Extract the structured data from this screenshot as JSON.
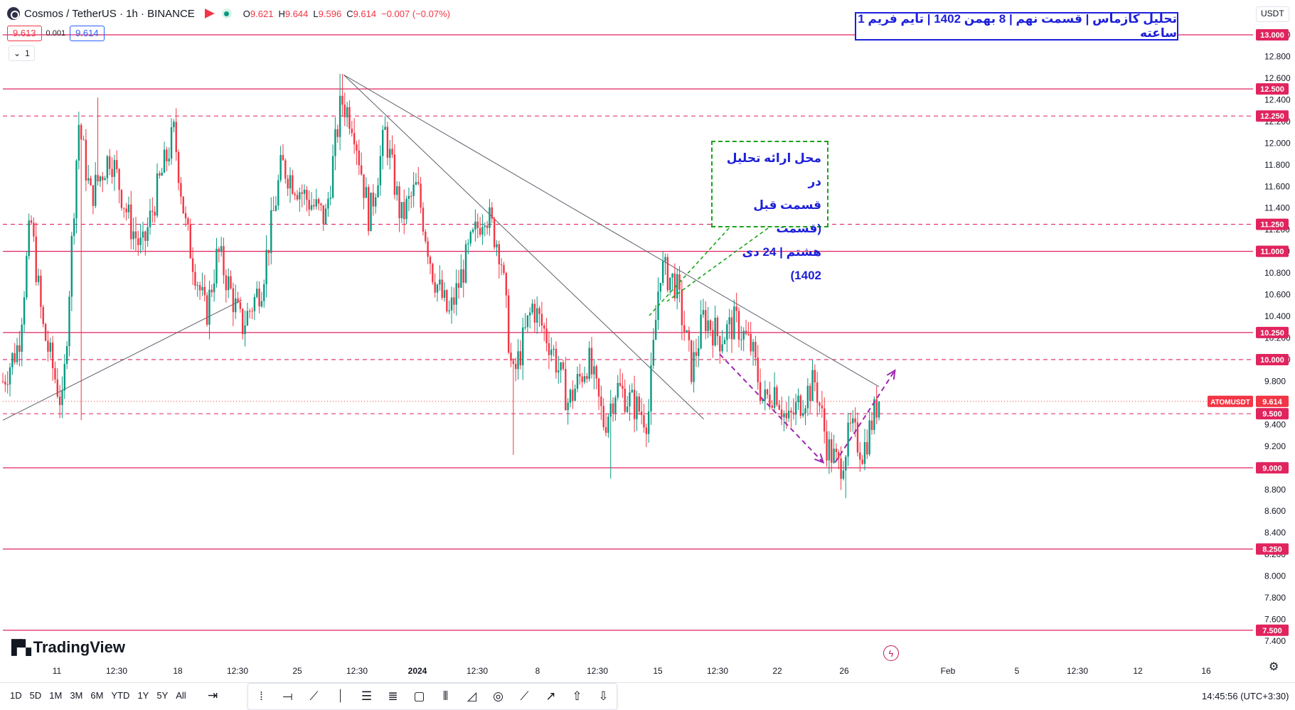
{
  "header": {
    "symbol_name": "Cosmos / TetherUS · 1h · BINANCE",
    "ohlc": [
      {
        "k": "O",
        "v": "9.621"
      },
      {
        "k": "H",
        "v": "9.644"
      },
      {
        "k": "L",
        "v": "9.596"
      },
      {
        "k": "C",
        "v": "9.614"
      }
    ],
    "change": "−0.007 (−0.07%)",
    "sell_price": "9.613",
    "spread": "0.001",
    "buy_price": "9.614",
    "collapse_count": "1",
    "currency": "USDT"
  },
  "title_text": "تحلیل کازماس | قسمت نهم | 8 بهمن 1402 | تایم فریم 1 ساعته",
  "note_lines": [
    "محل ارائه تحلیل در",
    "قسمت قبل (قسمت",
    "هشتم | 24 دی 1402)"
  ],
  "brand": "TradingView",
  "colors": {
    "up": "#089981",
    "down": "#f23645",
    "level_line": "#e0245e",
    "level_label_bg": "#e0245e",
    "trendline": "#5d606b",
    "arrow": "#9c27b0",
    "note_arrow": "#1aa31a",
    "current_price_bg": "#f23645"
  },
  "chart_data": {
    "type": "candlestick",
    "ylim": [
      7.2,
      13.1
    ],
    "y_ticks": [
      "13.000",
      "12.800",
      "12.600",
      "12.400",
      "12.200",
      "12.000",
      "11.800",
      "11.600",
      "11.400",
      "11.200",
      "11.000",
      "10.800",
      "10.600",
      "10.400",
      "10.200",
      "10.000",
      "9.800",
      "9.600",
      "9.400",
      "9.200",
      "9.000",
      "8.800",
      "8.600",
      "8.400",
      "8.200",
      "8.000",
      "7.800",
      "7.600",
      "7.400"
    ],
    "x_ticks": [
      "11",
      "12:30",
      "18",
      "12:30",
      "25",
      "12:30",
      "2024",
      "12:30",
      "8",
      "12:30",
      "15",
      "12:30",
      "22",
      "26",
      "Feb",
      "5",
      "12:30",
      "12",
      "16"
    ],
    "levels": [
      {
        "value": 13.0,
        "label": "13.000",
        "style": "solid"
      },
      {
        "value": 12.5,
        "label": "12.500",
        "style": "solid"
      },
      {
        "value": 12.25,
        "label": "12.250",
        "style": "dashed"
      },
      {
        "value": 11.25,
        "label": "11.250",
        "style": "dashed"
      },
      {
        "value": 11.0,
        "label": "11.000",
        "style": "solid"
      },
      {
        "value": 10.25,
        "label": "10.250",
        "style": "solid"
      },
      {
        "value": 10.0,
        "label": "10.000",
        "style": "dashed"
      },
      {
        "value": 9.5,
        "label": "9.500",
        "style": "dashed"
      },
      {
        "value": 9.0,
        "label": "9.000",
        "style": "solid"
      },
      {
        "value": 8.25,
        "label": "8.250",
        "style": "solid"
      },
      {
        "value": 7.5,
        "label": "7.500",
        "style": "solid"
      }
    ],
    "current_price": {
      "value": 9.614,
      "label": "9.614",
      "ticker": "ATOMUSDT"
    },
    "price_path": [
      [
        0,
        9.8
      ],
      [
        0.02,
        10.15
      ],
      [
        0.035,
        11.3
      ],
      [
        0.05,
        10.3
      ],
      [
        0.075,
        9.55
      ],
      [
        0.095,
        12.2
      ],
      [
        0.11,
        11.5
      ],
      [
        0.135,
        11.9
      ],
      [
        0.16,
        11.25
      ],
      [
        0.175,
        11.0
      ],
      [
        0.195,
        11.6
      ],
      [
        0.215,
        12.1
      ],
      [
        0.23,
        11.2
      ],
      [
        0.255,
        10.4
      ],
      [
        0.27,
        11.0
      ],
      [
        0.3,
        10.3
      ],
      [
        0.325,
        10.7
      ],
      [
        0.35,
        11.8
      ],
      [
        0.38,
        11.5
      ],
      [
        0.405,
        11.3
      ],
      [
        0.425,
        12.4
      ],
      [
        0.44,
        12.2
      ],
      [
        0.46,
        11.3
      ],
      [
        0.48,
        12.1
      ],
      [
        0.5,
        11.3
      ],
      [
        0.52,
        11.6
      ],
      [
        0.54,
        10.8
      ],
      [
        0.56,
        10.4
      ],
      [
        0.585,
        11.0
      ],
      [
        0.605,
        11.4
      ],
      [
        0.625,
        11.0
      ],
      [
        0.64,
        9.8
      ],
      [
        0.665,
        10.5
      ],
      [
        0.69,
        10.1
      ],
      [
        0.71,
        9.6
      ],
      [
        0.735,
        10.0
      ],
      [
        0.755,
        9.4
      ],
      [
        0.77,
        9.75
      ],
      [
        0.79,
        9.6
      ],
      [
        0.81,
        9.45
      ],
      [
        0.825,
        10.85
      ],
      [
        0.845,
        10.7
      ],
      [
        0.865,
        9.9
      ],
      [
        0.88,
        10.4
      ],
      [
        0.9,
        10.2
      ],
      [
        0.92,
        10.35
      ],
      [
        0.94,
        10.1
      ],
      [
        0.955,
        9.6
      ],
      [
        0.97,
        9.75
      ],
      [
        0.985,
        9.4
      ],
      [
        1.0,
        9.6
      ],
      [
        1.02,
        9.8
      ],
      [
        1.035,
        9.2
      ],
      [
        1.05,
        9.0
      ],
      [
        1.065,
        9.35
      ],
      [
        1.08,
        9.15
      ],
      [
        1.1,
        9.65
      ]
    ],
    "extremes": [
      {
        "at": 0.425,
        "value": 12.64
      },
      {
        "at": 0.12,
        "value": 12.42
      },
      {
        "at": 0.763,
        "value": 8.9
      },
      {
        "at": 1.059,
        "value": 8.72
      },
      {
        "at": 0.64,
        "value": 9.12
      },
      {
        "at": 0.098,
        "value": 9.44
      }
    ],
    "trendlines": [
      {
        "x1": 0.0,
        "y1": 9.44,
        "x2": 0.3,
        "y2": 10.55
      },
      {
        "x1": 0.428,
        "y1": 12.63,
        "x2": 1.1,
        "y2": 9.75
      },
      {
        "x1": 0.428,
        "y1": 12.63,
        "x2": 0.88,
        "y2": 9.45
      }
    ],
    "arrows": [
      {
        "x1": 0.9,
        "y1": 10.05,
        "x2": 1.03,
        "y2": 9.05
      },
      {
        "x1": 1.045,
        "y1": 9.05,
        "x2": 1.12,
        "y2": 9.9
      }
    ]
  }
}
